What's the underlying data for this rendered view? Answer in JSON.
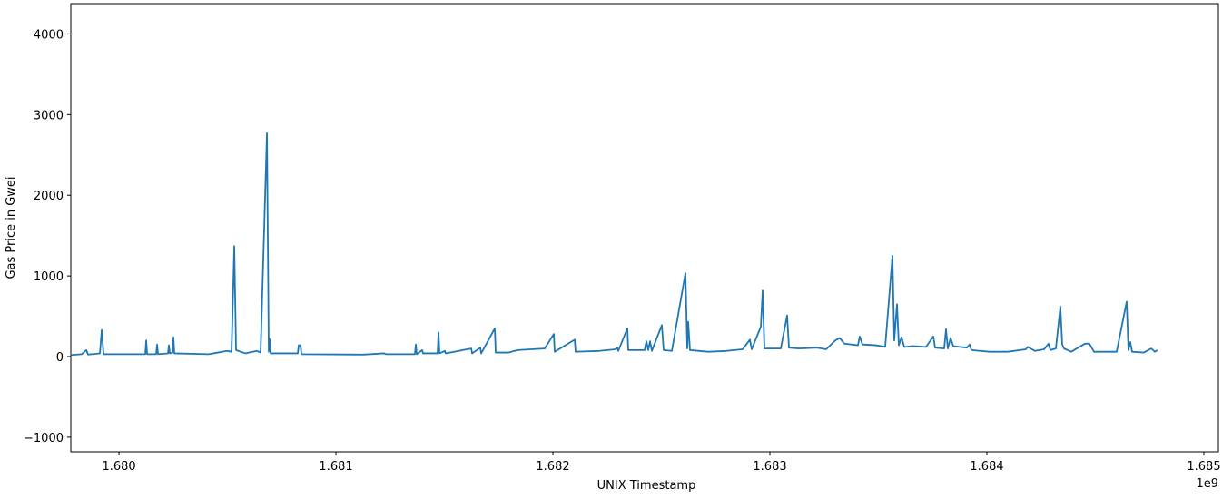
{
  "chart_data": {
    "type": "line",
    "xlabel": "UNIX Timestamp",
    "ylabel": "Gas Price in Gwei",
    "x_offset_label": "1e9",
    "xlim": [
      1679778000,
      1685067000
    ],
    "ylim": [
      -1181,
      4376
    ],
    "xticks": [
      {
        "value": 1680000000,
        "label": "1.680"
      },
      {
        "value": 1681000000,
        "label": "1.681"
      },
      {
        "value": 1682000000,
        "label": "1.682"
      },
      {
        "value": 1683000000,
        "label": "1.683"
      },
      {
        "value": 1684000000,
        "label": "1.684"
      },
      {
        "value": 1685000000,
        "label": "1.685"
      }
    ],
    "yticks": [
      {
        "value": -1000,
        "label": "−1000"
      },
      0,
      1000,
      2000,
      3000,
      4000
    ],
    "grid": false,
    "x": [
      1679778200,
      1679828500,
      1679849400,
      1679857700,
      1679912100,
      1679920500,
      1679928900,
      1680121300,
      1680125500,
      1680129700,
      1680171500,
      1680175700,
      1680179900,
      1680225900,
      1680230100,
      1680234300,
      1680246900,
      1680251000,
      1680255200,
      1680414200,
      1680456100,
      1680497900,
      1680518800,
      1680531400,
      1680539700,
      1680581600,
      1680636000,
      1680652700,
      1680682000,
      1680690400,
      1680694500,
      1680698700,
      1680824200,
      1680828400,
      1680836800,
      1680841000,
      1681125500,
      1681221700,
      1681230100,
      1681364000,
      1681368200,
      1681372400,
      1681397500,
      1681401600,
      1681468600,
      1681472800,
      1681477000,
      1681502100,
      1681506200,
      1681623400,
      1681627600,
      1681665200,
      1681669400,
      1681732200,
      1681736400,
      1681794900,
      1681836800,
      1681899500,
      1681962300,
      1682004100,
      1682008300,
      1682100400,
      1682104600,
      1682213300,
      1682288600,
      1682297000,
      1682301200,
      1682343000,
      1682347200,
      1682422500,
      1682430900,
      1682439300,
      1682447600,
      1682456000,
      1682502000,
      1682510400,
      1682548100,
      1682610800,
      1682619200,
      1682623400,
      1682631700,
      1682715400,
      1682799100,
      1682874400,
      1682907900,
      1682916200,
      1682958100,
      1682966500,
      1682974800,
      1683050100,
      1683079400,
      1683087800,
      1683133800,
      1683217500,
      1683259300,
      1683301200,
      1683322100,
      1683343000,
      1683405800,
      1683414100,
      1683426700,
      1683489500,
      1683531300,
      1683564800,
      1683573100,
      1683585700,
      1683594100,
      1683606600,
      1683619200,
      1683656800,
      1683719600,
      1683753000,
      1683761400,
      1683803300,
      1683811600,
      1683820000,
      1683832500,
      1683845100,
      1683907900,
      1683920400,
      1683928800,
      1684012500,
      1684096100,
      1684179800,
      1684188200,
      1684221700,
      1684263500,
      1684284400,
      1684292800,
      1684317900,
      1684338800,
      1684347200,
      1684355500,
      1684389000,
      1684451800,
      1684472700,
      1684493600,
      1684598200,
      1684644200,
      1684652600,
      1684661000,
      1684669300,
      1684723700,
      1684757200,
      1684773900,
      1684786500
    ],
    "series": [
      {
        "name": "Gas Price",
        "color": "#1f77b4",
        "values": [
          20,
          30,
          80,
          25,
          40,
          330,
          30,
          30,
          200,
          30,
          30,
          150,
          30,
          40,
          140,
          40,
          50,
          240,
          40,
          30,
          50,
          70,
          60,
          1370,
          80,
          40,
          70,
          50,
          2770,
          60,
          220,
          40,
          40,
          140,
          140,
          30,
          25,
          40,
          30,
          30,
          150,
          30,
          80,
          40,
          40,
          300,
          40,
          70,
          40,
          100,
          40,
          110,
          40,
          350,
          50,
          50,
          80,
          90,
          100,
          280,
          60,
          210,
          60,
          70,
          90,
          110,
          70,
          350,
          80,
          80,
          190,
          80,
          190,
          70,
          390,
          80,
          70,
          1035,
          100,
          430,
          80,
          60,
          70,
          90,
          210,
          90,
          370,
          820,
          100,
          100,
          510,
          110,
          100,
          110,
          90,
          200,
          230,
          160,
          140,
          250,
          150,
          140,
          120,
          1250,
          200,
          650,
          140,
          240,
          120,
          130,
          120,
          250,
          110,
          100,
          340,
          100,
          230,
          130,
          110,
          150,
          80,
          60,
          60,
          90,
          120,
          70,
          90,
          160,
          80,
          100,
          620,
          150,
          100,
          60,
          160,
          160,
          60,
          60,
          680,
          80,
          180,
          60,
          50,
          100,
          60,
          80
        ]
      }
    ]
  }
}
